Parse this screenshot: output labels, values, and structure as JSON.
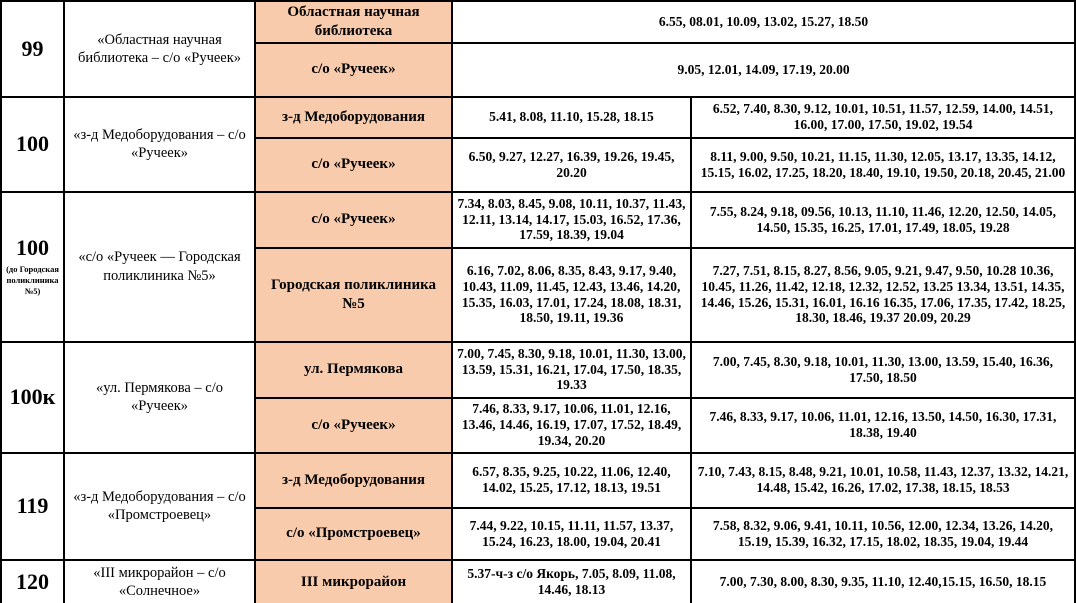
{
  "table": {
    "accent_color": "#F8CBAD",
    "border_color": "#000000",
    "rows": [
      {
        "route": "99",
        "route_note": "",
        "description": "«Областная научная библиотека – с/о «Ручеек»",
        "stops": [
          {
            "name": "Областная научная библиотека",
            "times": [
              "6.55, 08.01, 10.09, 13.02, 15.27, 18.50"
            ]
          },
          {
            "name": "с/о «Ручеек»",
            "times": [
              "9.05, 12.01, 14.09, 17.19,  20.00"
            ]
          }
        ]
      },
      {
        "route": "100",
        "route_note": "",
        "description": "«з-д Медоборудования – с/о «Ручеек»",
        "stops": [
          {
            "name": "з-д Медоборудования",
            "times": [
              "5.41, 8.08, 11.10, 15.28, 18.15",
              "6.52, 7.40, 8.30, 9.12, 10.01, 10.51, 11.57, 12.59, 14.00, 14.51, 16.00, 17.00, 17.50, 19.02, 19.54"
            ]
          },
          {
            "name": "с/о «Ручеек»",
            "times": [
              "6.50, 9.27, 12.27, 16.39, 19.26, 19.45, 20.20",
              "8.11, 9.00, 9.50, 10.21, 11.15, 11.30, 12.05, 13.17, 13.35, 14.12, 15.15, 16.02, 17.25, 18.20, 18.40, 19.10, 19.50, 20.18, 20.45, 21.00"
            ]
          }
        ]
      },
      {
        "route": "100",
        "route_note": "(до Городская поликлиника №5)",
        "description": "«с/о «Ручеек — Городская поликлиника №5»",
        "stops": [
          {
            "name": "с/о «Ручеек»",
            "times": [
              "7.34, 8.03, 8.45, 9.08, 10.11, 10.37, 11.43, 12.11, 13.14, 14.17, 15.03, 16.52, 17.36, 17.59, 18.39, 19.04",
              "7.55, 8.24, 9.18, 09.56, 10.13, 11.10, 11.46, 12.20, 12.50, 14.05, 14.50, 15.35, 16.25, 17.01, 17.49, 18.05, 19.28"
            ]
          },
          {
            "name": "Городская поликлиника №5",
            "times": [
              "6.16, 7.02, 8.06, 8.35, 8.43, 9.17, 9.40, 10.43, 11.09, 11.45, 12.43, 13.46, 14.20, 15.35, 16.03, 17.01, 17.24, 18.08, 18.31, 18.50, 19.11, 19.36",
              "7.27, 7.51, 8.15, 8.27, 8.56, 9.05, 9.21, 9.47, 9.50, 10.28 10.36, 10.45, 11.26, 11.42, 12.18, 12.32, 12.52, 13.25 13.34, 13.51, 14.35, 14.46, 15.26, 15.31, 16.01, 16.16 16.35, 17.06, 17.35, 17.42, 18.25, 18.30, 18.46, 19.37 20.09, 20.29"
            ]
          }
        ]
      },
      {
        "route": "100к",
        "route_note": "",
        "description": "«ул. Пермякова – с/о «Ручеек»",
        "stops": [
          {
            "name": "ул. Пермякова",
            "times": [
              "7.00, 7.45, 8.30, 9.18, 10.01, 11.30, 13.00, 13.59, 15.31, 16.21, 17.04, 17.50, 18.35, 19.33",
              "7.00, 7.45, 8.30, 9.18, 10.01, 11.30, 13.00, 13.59, 15.40, 16.36, 17.50, 18.50"
            ]
          },
          {
            "name": "с/о «Ручеек»",
            "times": [
              "7.46, 8.33, 9.17, 10.06, 11.01, 12.16, 13.46, 14.46, 16.19, 17.07, 17.52, 18.49, 19.34, 20.20",
              "7.46, 8.33, 9.17, 10.06, 11.01, 12.16, 13.50, 14.50, 16.30, 17.31, 18.38, 19.40"
            ]
          }
        ]
      },
      {
        "route": "119",
        "route_note": "",
        "description": "«з-д Медоборудования – с/о «Промстроевец»",
        "stops": [
          {
            "name": "з-д Медоборудования",
            "times": [
              "6.57, 8.35, 9.25, 10.22, 11.06, 12.40, 14.02, 15.25, 17.12, 18.13, 19.51",
              "7.10, 7.43, 8.15, 8.48, 9.21, 10.01, 10.58, 11.43, 12.37, 13.32, 14.21, 14.48, 15.42, 16.26, 17.02, 17.38, 18.15, 18.53"
            ]
          },
          {
            "name": "с/о «Промстроевец»",
            "times": [
              "7.44, 9.22, 10.15, 11.11, 11.57, 13.37, 15.24, 16.23, 18.00, 19.04, 20.41",
              "7.58, 8.32, 9.06, 9.41, 10.11, 10.56, 12.00, 12.34, 13.26, 14.20, 15.19, 15.39, 16.32, 17.15, 18.02, 18.35, 19.04, 19.44"
            ]
          }
        ]
      },
      {
        "route": "120",
        "route_note": "",
        "description": "«III микрорайон – с/о «Солнечное»",
        "stops": [
          {
            "name": "III микрорайон",
            "times": [
              "5.37-ч-з с/о Якорь, 7.05, 8.09, 11.08, 14.46, 18.13",
              "7.00, 7.30, 8.00, 8.30, 9.35, 11.10, 12.40,15.15, 16.50, 18.15"
            ]
          }
        ]
      }
    ]
  }
}
